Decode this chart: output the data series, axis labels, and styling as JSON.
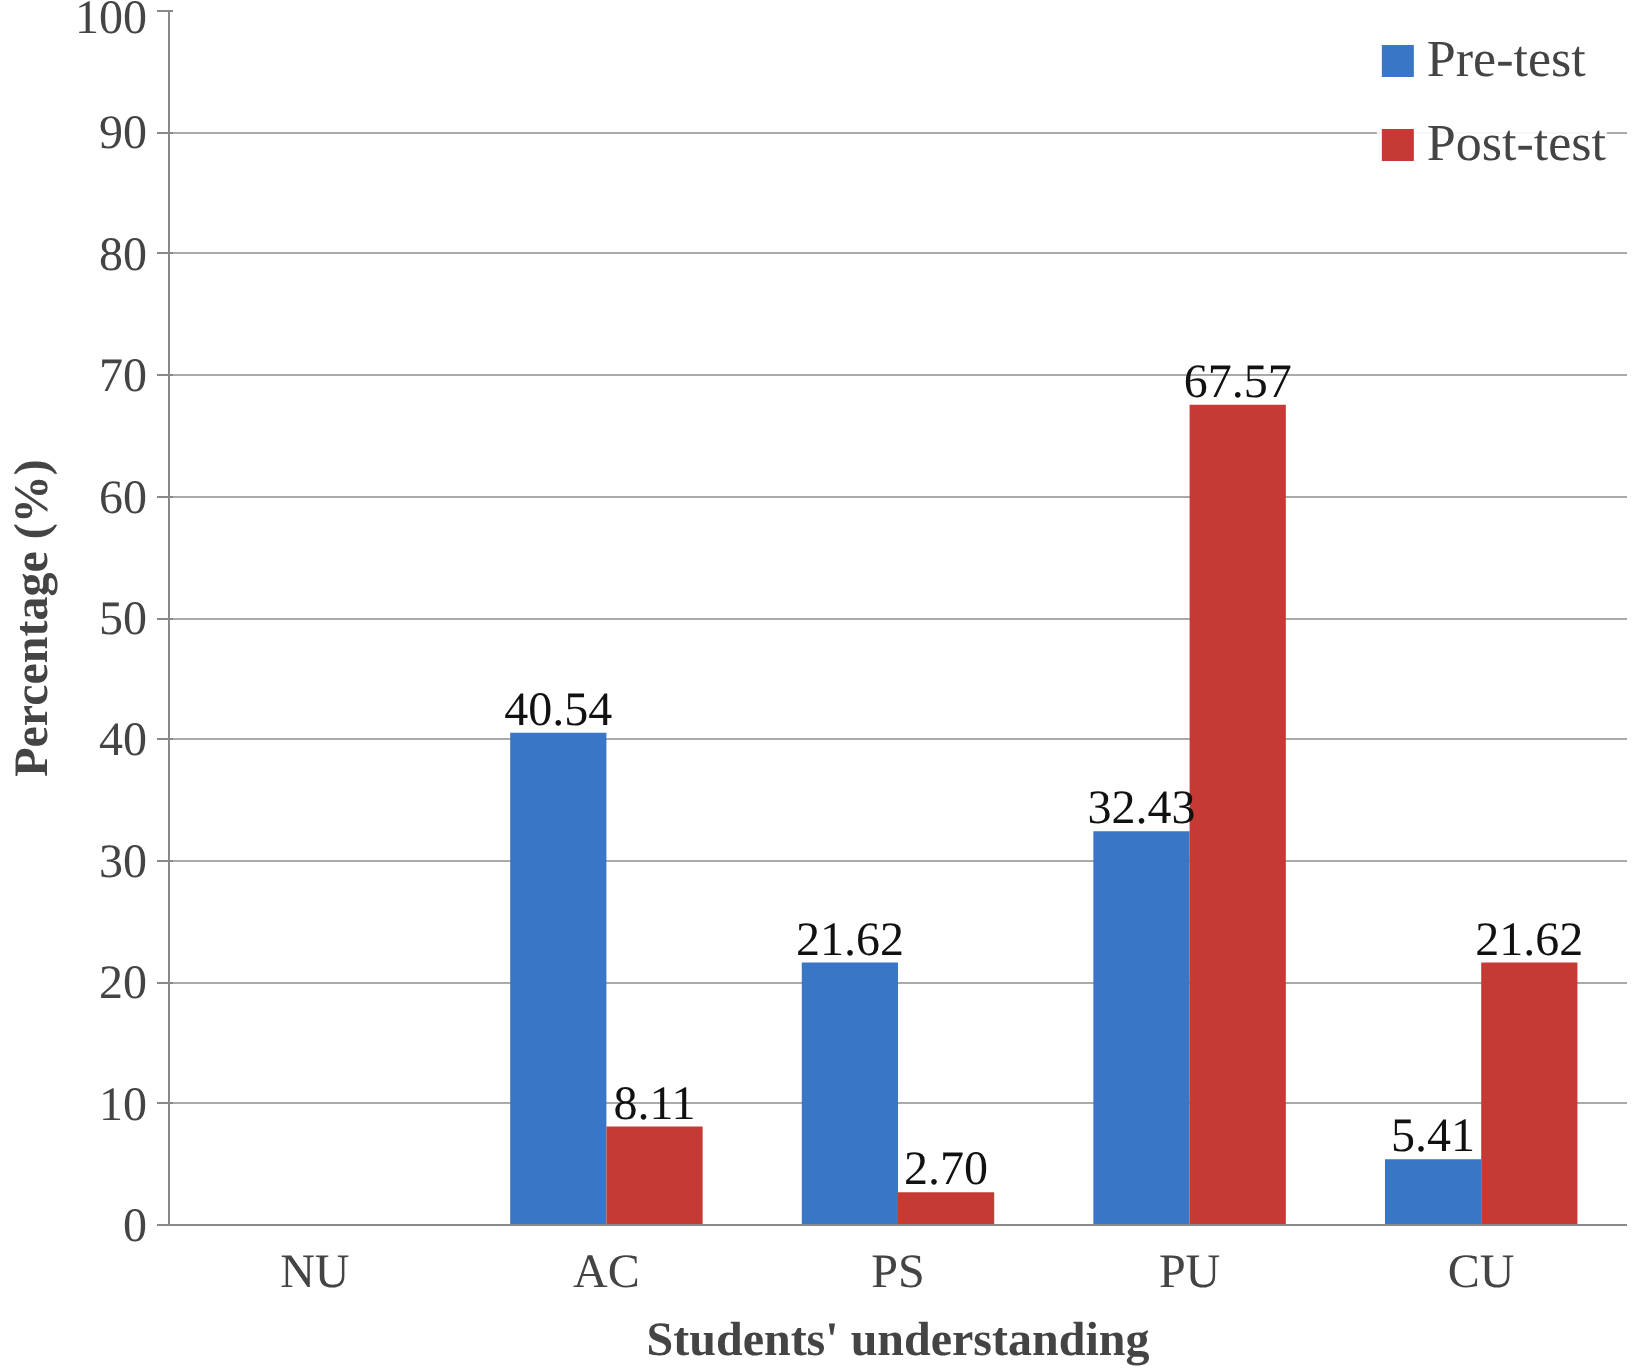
{
  "chart_data": {
    "type": "bar",
    "xlabel": "Students' understanding",
    "ylabel": "Percentage (%)",
    "categories": [
      "NU",
      "AC",
      "PS",
      "PU",
      "CU"
    ],
    "series": [
      {
        "name": "Pre-test",
        "color": "#3a76c6",
        "values": [
          0,
          40.54,
          21.62,
          32.43,
          5.41
        ],
        "value_labels": [
          null,
          "40.54",
          "21.62",
          "32.43",
          "5.41"
        ]
      },
      {
        "name": "Post-test",
        "color": "#c63a36",
        "values": [
          0,
          8.11,
          2.7,
          67.57,
          21.62
        ],
        "value_labels": [
          null,
          "8.11",
          "2.70",
          "67.57",
          "21.62"
        ]
      }
    ],
    "ylim": [
      0,
      100
    ],
    "yticks": [
      0,
      10,
      20,
      30,
      40,
      50,
      60,
      70,
      80,
      90,
      100
    ],
    "grid": "y",
    "legend": "top right"
  }
}
